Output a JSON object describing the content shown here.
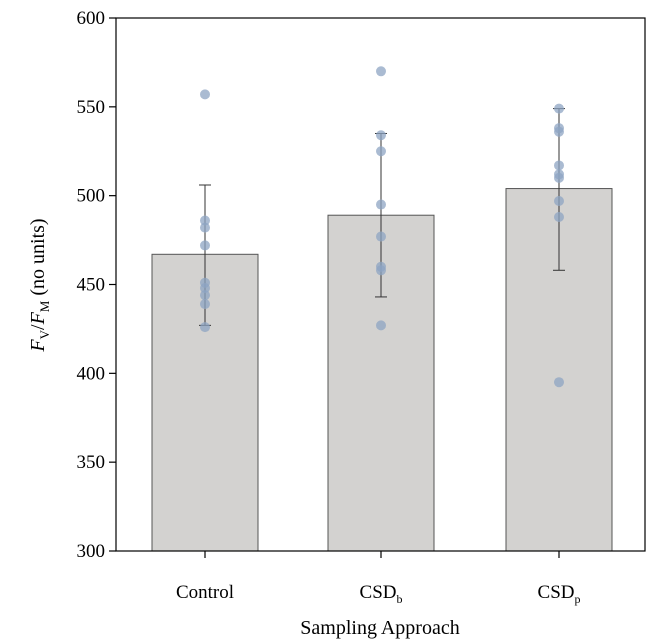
{
  "chart_data": {
    "type": "bar",
    "categories": [
      {
        "main": "Control",
        "sub": ""
      },
      {
        "main": "CSD",
        "sub": "b"
      },
      {
        "main": "CSD",
        "sub": "p"
      }
    ],
    "values": [
      467,
      489,
      504
    ],
    "error_low": [
      427,
      443,
      458
    ],
    "error_high": [
      506,
      535,
      549
    ],
    "points": [
      [
        557,
        486,
        482,
        472,
        451,
        448,
        444,
        439,
        426
      ],
      [
        570,
        534,
        525,
        495,
        477,
        460,
        458,
        427
      ],
      [
        549,
        538,
        536,
        517,
        512,
        510,
        497,
        488,
        395
      ]
    ],
    "ylim": [
      300,
      600
    ],
    "yticks": [
      300,
      350,
      400,
      450,
      500,
      550,
      600
    ],
    "title": "",
    "xlabel": "Sampling Approach",
    "ylabel": {
      "f1": "F",
      "sub1": "V",
      "sep": "/",
      "f2": "F",
      "sub2": "M",
      "rest": " (no units)"
    },
    "colors": {
      "bar": "#d3d2d0",
      "point": "#8ea4c3"
    }
  }
}
